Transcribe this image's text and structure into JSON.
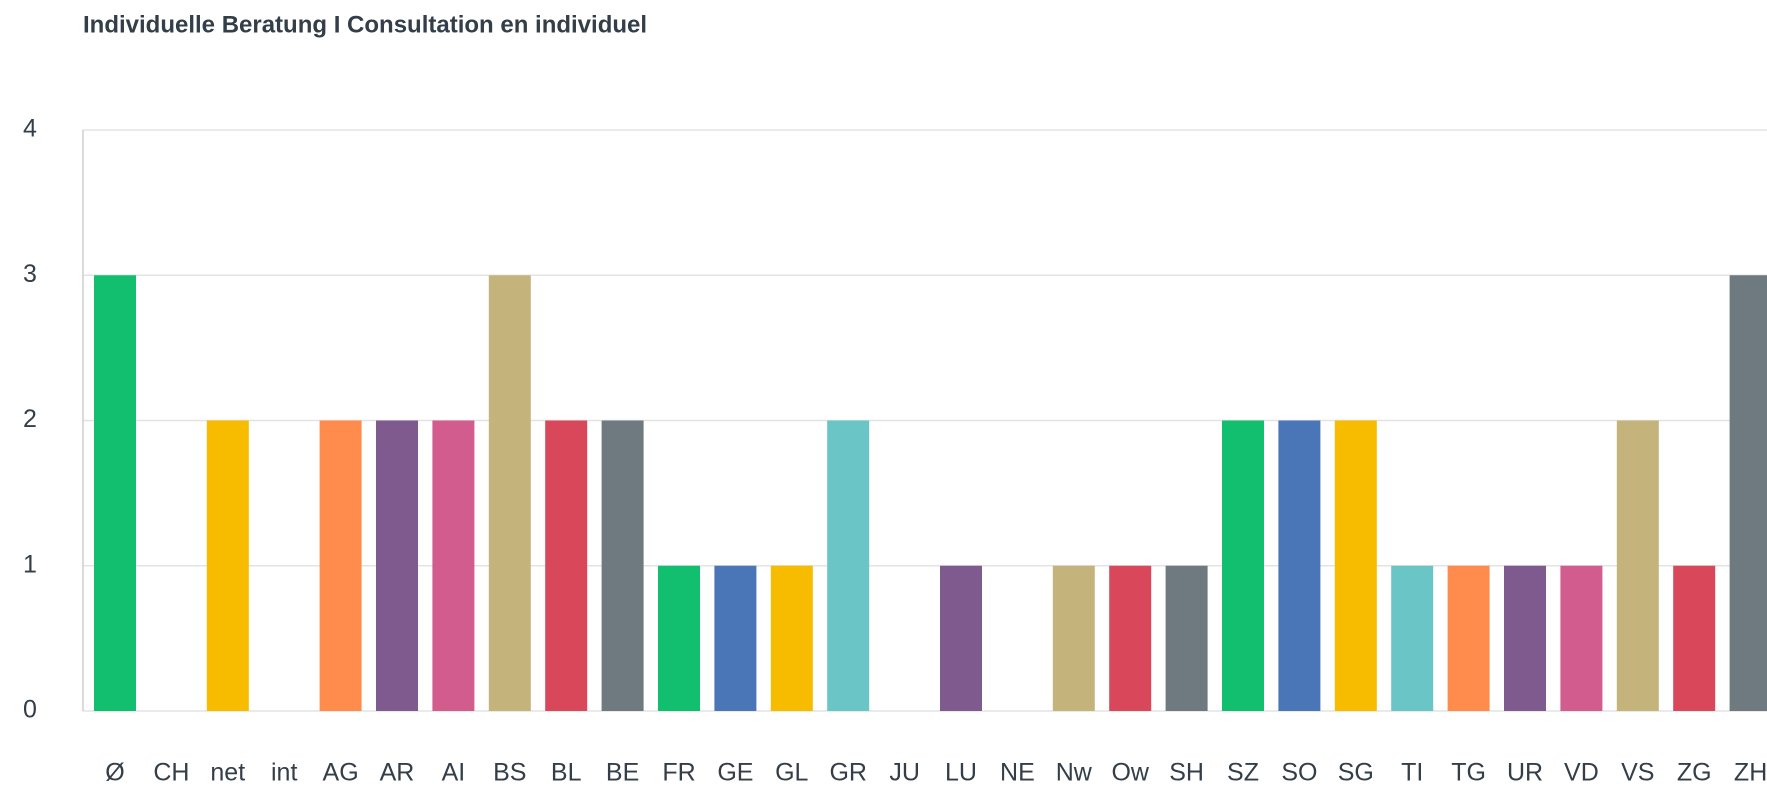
{
  "chart_data": {
    "type": "bar",
    "title": "Individuelle Beratung I Consultation en individuel",
    "categories": [
      "Ø",
      "CH",
      "net",
      "int",
      "AG",
      "AR",
      "AI",
      "BS",
      "BL",
      "BE",
      "FR",
      "GE",
      "GL",
      "GR",
      "JU",
      "LU",
      "NE",
      "Nw",
      "Ow",
      "SH",
      "SZ",
      "SO",
      "SG",
      "TI",
      "TG",
      "UR",
      "VD",
      "VS",
      "ZG",
      "ZH"
    ],
    "values": [
      3,
      0,
      2,
      0,
      2,
      2,
      2,
      3,
      2,
      2,
      1,
      1,
      1,
      2,
      0,
      1,
      0,
      1,
      1,
      1,
      2,
      2,
      2,
      1,
      1,
      1,
      1,
      2,
      1,
      3
    ],
    "colors": [
      "#12bf6e",
      "#4a76b7",
      "#f7bb00",
      "#69c5c6",
      "#ff8b4c",
      "#7e5a8f",
      "#d25c8e",
      "#c4b37a",
      "#d9475a",
      "#6f7a80",
      "#12bf6e",
      "#4a76b7",
      "#f7bb00",
      "#69c5c6",
      "#ff8b4c",
      "#7e5a8f",
      "#d25c8e",
      "#c4b37a",
      "#d9475a",
      "#6f7a80",
      "#12bf6e",
      "#4a76b7",
      "#f7bb00",
      "#69c5c6",
      "#ff8b4c",
      "#7e5a8f",
      "#d25c8e",
      "#c4b37a",
      "#d9475a",
      "#6f7a80"
    ],
    "ylim": [
      0,
      4
    ],
    "yticks": [
      0,
      1,
      2,
      3,
      4
    ],
    "grid": true
  }
}
